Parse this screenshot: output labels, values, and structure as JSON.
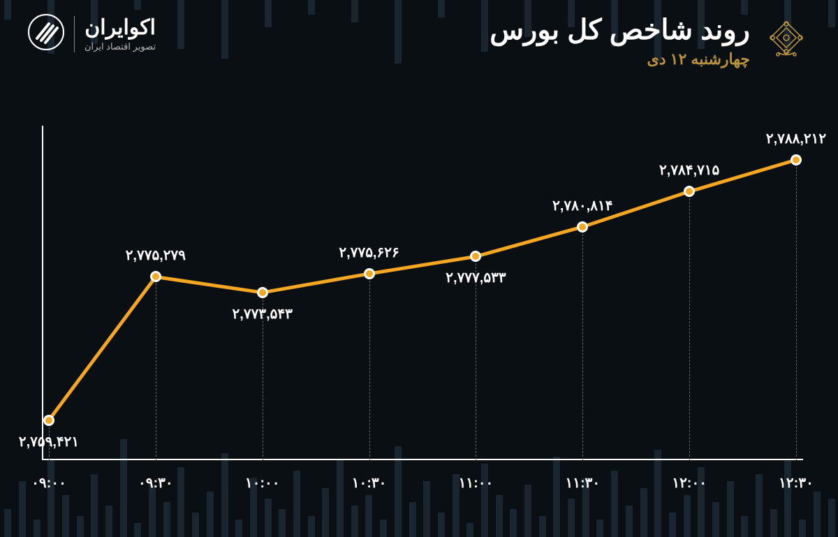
{
  "header": {
    "brand_name": "اکوایران",
    "brand_tagline": "تصویر اقتصاد ایران",
    "title": "روند شاخص کل بورس",
    "subtitle": "چهارشنبه ۱۲ دی",
    "subtitle_color": "#b9923e"
  },
  "chart": {
    "type": "line",
    "background_color": "#0a0f14",
    "line_color": "#f5a623",
    "line_width": 5,
    "marker_fill": "#f5a623",
    "marker_border": "#ffffff",
    "marker_radius": 8,
    "axis_color": "#ffffff",
    "dropline_color": "#6b6b6b",
    "label_color": "#ffffff",
    "label_fontsize": 20,
    "x_labels": [
      "۰۹:۰۰",
      "۰۹:۳۰",
      "۱۰:۰۰",
      "۱۰:۳۰",
      "۱۱:۰۰",
      "۱۱:۳۰",
      "۱۲:۰۰",
      "۱۲:۳۰"
    ],
    "value_labels": [
      "۲,۷۵۹,۴۲۱",
      "۲,۷۷۵,۲۷۹",
      "۲,۷۷۳,۵۴۳",
      "۲,۷۷۵,۶۲۶",
      "۲,۷۷۷,۵۳۳",
      "۲,۷۸۰,۸۱۴",
      "۲,۷۸۴,۷۱۵",
      "۲,۷۸۸,۲۱۲"
    ],
    "values": [
      2759421,
      2775279,
      2773543,
      2775626,
      2777533,
      2780814,
      2784715,
      2788212
    ],
    "value_label_side": [
      "below",
      "above",
      "below",
      "above",
      "below",
      "above",
      "above",
      "above"
    ],
    "ylim": [
      2755000,
      2792000
    ],
    "emblem_color": "#b9923e"
  },
  "bg_bars": {
    "color": "#1a2530",
    "heights": [
      40,
      80,
      25,
      110,
      60,
      30,
      90,
      45,
      140,
      20,
      75,
      50,
      100,
      35,
      65,
      120,
      25,
      85,
      55,
      40,
      95,
      30,
      70,
      110,
      45,
      60,
      25,
      130,
      50,
      80,
      35,
      90,
      20,
      105,
      60,
      40,
      75,
      30,
      115,
      55,
      85,
      25,
      95,
      45,
      70,
      125,
      35,
      60,
      100,
      50,
      80,
      30,
      90,
      40,
      110,
      25,
      65,
      55
    ]
  }
}
